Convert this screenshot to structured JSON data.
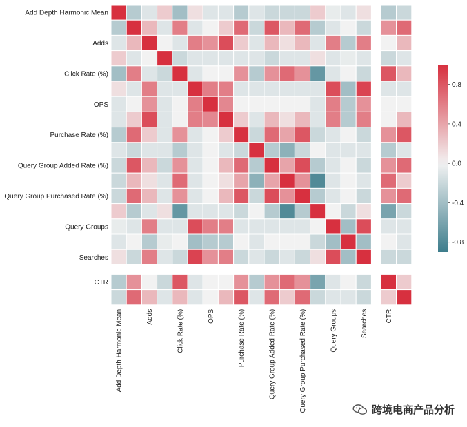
{
  "chart_data": {
    "type": "heatmap",
    "title": "",
    "xlabel": "",
    "ylabel": "",
    "rows": [
      "Add Depth Harmonic Mean",
      "",
      "Adds",
      "",
      "Click Rate (%)",
      "",
      "OPS",
      "",
      "Purchase Rate (%)",
      "",
      "Query Group Added Rate (%)",
      "",
      "Query Group Purchased Rate (%)",
      "",
      "Query Groups",
      "",
      "Searches",
      "",
      "CTR",
      ""
    ],
    "cols": [
      "Add Depth Harmonic Mean",
      "",
      "Adds",
      "",
      "Click Rate (%)",
      "",
      "OPS",
      "",
      "Purchase Rate (%)",
      "",
      "Query Group Added Rate (%)",
      "",
      "Query Group Purchased Rate (%)",
      "",
      "Query Groups",
      "",
      "Searches",
      "",
      "CTR",
      ""
    ],
    "y_tick_labels": [
      "Add Depth Harmonic Mean",
      "Adds",
      "Click Rate (%)",
      "OPS",
      "Purchase Rate (%)",
      "Query Group Added Rate (%)",
      "Query Group Purchased Rate (%)",
      "Query Groups",
      "Searches",
      "CTR"
    ],
    "x_tick_labels": [
      "Add Depth Harmonic Mean",
      "Adds",
      "Click Rate (%)",
      "OPS",
      "Purchase Rate (%)",
      "Query Group Added Rate (%)",
      "Query Group Purchased Rate (%)",
      "Query Groups",
      "Searches",
      "CTR"
    ],
    "matrix": [
      [
        1.0,
        -0.3,
        -0.1,
        0.2,
        -0.4,
        0.1,
        -0.1,
        -0.1,
        -0.3,
        -0.1,
        -0.2,
        -0.2,
        -0.2,
        0.2,
        -0.05,
        -0.1,
        0.1,
        null,
        -0.3,
        -0.2
      ],
      [
        -0.3,
        1.0,
        0.3,
        -0.1,
        0.6,
        -0.1,
        0.0,
        0.2,
        0.7,
        -0.2,
        0.8,
        0.3,
        0.7,
        -0.3,
        -0.1,
        0.0,
        -0.2,
        null,
        0.5,
        0.7
      ],
      [
        -0.1,
        0.3,
        1.0,
        0.0,
        -0.1,
        0.6,
        0.5,
        0.85,
        0.2,
        -0.1,
        0.3,
        0.1,
        0.3,
        -0.1,
        0.6,
        -0.3,
        0.6,
        null,
        0.0,
        0.3
      ],
      [
        0.2,
        -0.1,
        0.0,
        1.0,
        -0.2,
        -0.1,
        -0.1,
        -0.1,
        -0.1,
        -0.1,
        -0.2,
        -0.1,
        -0.1,
        0.1,
        -0.1,
        -0.05,
        -0.1,
        null,
        -0.2,
        -0.1
      ],
      [
        -0.4,
        0.6,
        -0.1,
        -0.2,
        1.0,
        -0.1,
        0.0,
        0.0,
        0.5,
        -0.3,
        0.5,
        0.7,
        0.5,
        -0.7,
        -0.1,
        0.0,
        -0.2,
        null,
        0.8,
        0.3
      ],
      [
        0.1,
        -0.1,
        0.6,
        -0.1,
        -0.1,
        1.0,
        0.6,
        0.6,
        -0.1,
        -0.1,
        -0.1,
        -0.1,
        -0.1,
        -0.1,
        0.85,
        -0.4,
        0.9,
        null,
        -0.1,
        -0.1
      ],
      [
        -0.1,
        0.0,
        0.5,
        -0.1,
        0.0,
        0.6,
        1.0,
        0.55,
        0.0,
        0.0,
        0.0,
        0.0,
        0.0,
        -0.1,
        0.6,
        -0.3,
        0.5,
        null,
        0.0,
        0.0
      ],
      [
        -0.1,
        0.2,
        0.85,
        -0.1,
        0.0,
        0.6,
        0.55,
        1.0,
        0.2,
        -0.1,
        0.3,
        0.1,
        0.3,
        -0.1,
        0.6,
        -0.3,
        0.6,
        null,
        0.0,
        0.3
      ],
      [
        -0.3,
        0.7,
        0.2,
        -0.1,
        0.5,
        -0.1,
        0.0,
        0.2,
        1.0,
        -0.2,
        0.7,
        0.4,
        0.8,
        -0.2,
        -0.1,
        0.0,
        -0.2,
        null,
        0.5,
        0.8
      ],
      [
        -0.1,
        -0.2,
        -0.1,
        -0.1,
        -0.3,
        -0.1,
        0.0,
        -0.1,
        -0.2,
        1.0,
        -0.3,
        -0.5,
        -0.2,
        0.0,
        -0.1,
        -0.1,
        -0.1,
        null,
        -0.3,
        -0.1
      ],
      [
        -0.2,
        0.8,
        0.3,
        -0.2,
        0.5,
        -0.1,
        0.0,
        0.3,
        0.7,
        -0.3,
        1.0,
        0.4,
        0.85,
        -0.3,
        -0.1,
        0.0,
        -0.2,
        null,
        0.5,
        0.7
      ],
      [
        -0.2,
        0.3,
        0.1,
        -0.1,
        0.7,
        -0.1,
        0.0,
        0.1,
        0.4,
        -0.5,
        0.4,
        1.0,
        0.5,
        -0.8,
        -0.1,
        0.0,
        -0.1,
        null,
        0.7,
        0.2
      ],
      [
        -0.2,
        0.7,
        0.3,
        -0.1,
        0.5,
        -0.1,
        0.0,
        0.3,
        0.8,
        -0.2,
        0.85,
        0.5,
        1.0,
        -0.3,
        -0.1,
        0.0,
        -0.2,
        null,
        0.5,
        0.7
      ],
      [
        0.2,
        -0.3,
        -0.1,
        0.1,
        -0.7,
        -0.1,
        -0.1,
        -0.1,
        -0.2,
        0.0,
        -0.3,
        -0.8,
        -0.3,
        1.0,
        0.0,
        -0.2,
        0.1,
        null,
        -0.6,
        -0.2
      ],
      [
        -0.05,
        -0.1,
        0.6,
        -0.1,
        -0.1,
        0.85,
        0.6,
        0.6,
        -0.1,
        -0.1,
        -0.1,
        -0.1,
        -0.1,
        0.0,
        1.0,
        -0.4,
        0.85,
        null,
        -0.1,
        -0.1
      ],
      [
        -0.1,
        0.0,
        -0.3,
        -0.05,
        0.0,
        -0.4,
        -0.3,
        -0.3,
        0.0,
        -0.1,
        0.0,
        0.0,
        0.0,
        -0.2,
        -0.4,
        1.0,
        -0.4,
        null,
        0.0,
        -0.1
      ],
      [
        0.1,
        -0.2,
        0.6,
        -0.1,
        -0.2,
        0.9,
        0.5,
        0.6,
        -0.2,
        -0.1,
        -0.2,
        -0.1,
        -0.2,
        0.1,
        0.85,
        -0.4,
        1.0,
        null,
        -0.2,
        -0.2
      ],
      [
        null,
        null,
        null,
        null,
        null,
        null,
        null,
        null,
        null,
        null,
        null,
        null,
        null,
        null,
        null,
        null,
        null,
        null,
        null,
        null
      ],
      [
        -0.3,
        0.5,
        0.0,
        -0.2,
        0.8,
        -0.1,
        0.0,
        0.0,
        0.5,
        -0.3,
        0.5,
        0.7,
        0.5,
        -0.6,
        -0.1,
        0.0,
        -0.2,
        null,
        1.0,
        0.2
      ],
      [
        -0.2,
        0.7,
        0.3,
        -0.1,
        0.3,
        -0.1,
        0.0,
        0.3,
        0.8,
        -0.1,
        0.7,
        0.2,
        0.7,
        -0.2,
        -0.1,
        -0.1,
        -0.2,
        null,
        0.2,
        1.0
      ]
    ],
    "colorbar": {
      "min": -0.9,
      "max": 1.0,
      "ticks": [
        0.8,
        0.4,
        0.0,
        -0.4,
        -0.8
      ],
      "tick_labels": [
        "0.8",
        "0.4",
        "0.0",
        "-0.4",
        "-0.8"
      ],
      "color_negative": "#3d7d8c",
      "color_center": "#f2f2f2",
      "color_positive": "#d7303f"
    },
    "grid": true,
    "cell_border_color": "#ffffff"
  },
  "watermark": {
    "text": "跨境电商产品分析",
    "icon": "wechat-icon"
  }
}
